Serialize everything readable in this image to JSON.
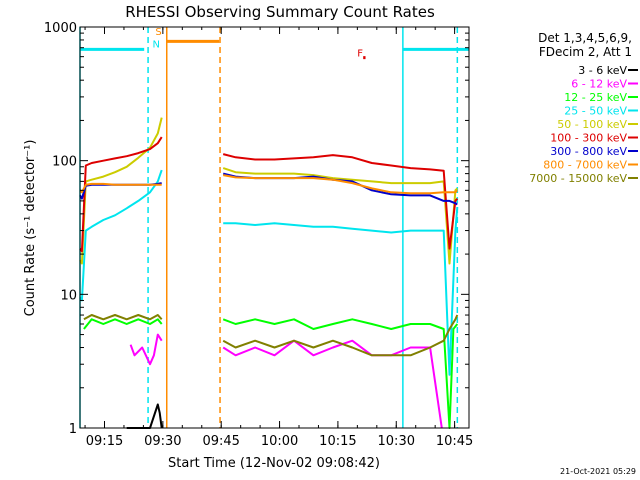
{
  "chart_data": {
    "type": "line",
    "title": "RHESSI Observing Summary Count Rates",
    "xlabel": "Start Time (12-Nov-02 09:08:42)",
    "ylabel": "Count Rate (s⁻¹ detector⁻¹)",
    "y_scale": "log",
    "ylim": [
      1,
      1000
    ],
    "xlim_minutes": [
      0,
      100
    ],
    "x_ticks": [
      {
        "label": "09:15",
        "t": 6.3
      },
      {
        "label": "09:30",
        "t": 21.3
      },
      {
        "label": "09:45",
        "t": 36.3
      },
      {
        "label": "10:00",
        "t": 51.3
      },
      {
        "label": "10:15",
        "t": 66.3
      },
      {
        "label": "10:30",
        "t": 81.3
      },
      {
        "label": "10:45",
        "t": 96.3
      }
    ],
    "y_ticks": [
      {
        "label": "1",
        "v": 1
      },
      {
        "label": "10",
        "v": 10
      },
      {
        "label": "100",
        "v": 100
      },
      {
        "label": "1000",
        "v": 1000
      }
    ],
    "info_lines": [
      "Det 1,3,4,5,6,9,",
      "FDecim 2, Att 1"
    ],
    "timestamp": "21-Oct-2021 05:29",
    "flags": [
      {
        "text": "S",
        "t": 20.2,
        "v": 870,
        "color": "#ff8c00"
      },
      {
        "text": "N",
        "t": 19.6,
        "v": 700,
        "color": "#00e5ee"
      },
      {
        "text": "F",
        "t": 72.0,
        "v": 600,
        "color": "#dd0000"
      }
    ],
    "vlines": [
      {
        "t": 0.0,
        "color": "#00e5ee",
        "dash": false
      },
      {
        "t": 17.5,
        "color": "#00e5ee",
        "dash": true
      },
      {
        "t": 22.3,
        "color": "#ff8c00",
        "dash": false
      },
      {
        "t": 36.0,
        "color": "#ff8c00",
        "dash": true
      },
      {
        "t": 83.0,
        "color": "#00e5ee",
        "dash": false
      },
      {
        "t": 97.0,
        "color": "#00e5ee",
        "dash": true
      }
    ],
    "bars": [
      {
        "t0": 0,
        "t1": 16.5,
        "v": 680,
        "color": "#00e5ee"
      },
      {
        "t0": 22.3,
        "t1": 35.8,
        "v": 780,
        "color": "#ff8c00"
      },
      {
        "t0": 83,
        "t1": 100,
        "v": 680,
        "color": "#00e5ee"
      },
      {
        "t0": 72.8,
        "t1": 73.4,
        "v": 590,
        "color": "#dd0000"
      }
    ],
    "series": [
      {
        "name": "3 - 6 keV",
        "color": "#000000",
        "x": [
          1,
          12,
          14,
          16,
          18,
          20,
          20.5,
          21
        ],
        "y": [
          1,
          1,
          1,
          1,
          1,
          1.5,
          1.3,
          1
        ]
      },
      {
        "name": "6 - 12 keV",
        "color": "#ff00ff",
        "x": [
          13,
          14,
          16,
          18,
          19,
          20,
          21,
          36.8,
          40,
          45,
          50,
          55,
          60,
          65,
          70,
          75,
          80,
          85,
          90,
          93
        ],
        "y": [
          4.2,
          3.5,
          4.0,
          3.0,
          3.5,
          5.0,
          4.5,
          4.0,
          3.5,
          4.0,
          3.5,
          4.5,
          3.5,
          4.0,
          4.5,
          3.5,
          3.5,
          4.0,
          4.0,
          1
        ]
      },
      {
        "name": "12 - 25 keV",
        "color": "#00ff00",
        "x": [
          1,
          3,
          6,
          9,
          12,
          15,
          18,
          20,
          21,
          36.8,
          40,
          45,
          50,
          55,
          60,
          65,
          70,
          75,
          80,
          85,
          90,
          93.5,
          95,
          96,
          97
        ],
        "y": [
          5.5,
          6.5,
          6.0,
          6.5,
          6.0,
          6.5,
          6.0,
          6.5,
          6.0,
          6.5,
          6.0,
          6.5,
          6.0,
          6.5,
          5.5,
          6.0,
          6.5,
          6.0,
          5.5,
          6.0,
          6.0,
          5.5,
          1,
          5.5,
          6.0
        ]
      },
      {
        "name": "25 - 50 keV",
        "color": "#00e5ee",
        "x": [
          0,
          0.5,
          1.5,
          3,
          6,
          9,
          12,
          15,
          18,
          20,
          21,
          36.8,
          40,
          45,
          50,
          55,
          60,
          65,
          70,
          75,
          80,
          85,
          90,
          93.5,
          95,
          96.5,
          97
        ],
        "y": [
          9.5,
          9,
          30,
          32,
          36,
          39,
          44,
          50,
          58,
          70,
          85,
          34,
          34,
          33,
          34,
          33,
          32,
          32,
          31,
          30,
          29,
          30,
          30,
          30,
          2.5,
          30,
          45
        ]
      },
      {
        "name": "50 - 100 keV",
        "color": "#cccc00",
        "x": [
          0,
          0.5,
          1.5,
          3,
          6,
          9,
          12,
          15,
          18,
          20,
          21,
          36.8,
          40,
          45,
          50,
          55,
          60,
          65,
          70,
          75,
          80,
          85,
          90,
          93.5,
          95,
          96.5,
          97
        ],
        "y": [
          18,
          17,
          70,
          72,
          76,
          82,
          90,
          105,
          125,
          160,
          210,
          88,
          82,
          80,
          80,
          80,
          78,
          74,
          72,
          70,
          68,
          68,
          68,
          70,
          17,
          60,
          62
        ]
      },
      {
        "name": "100 - 300 keV",
        "color": "#dd0000",
        "x": [
          0,
          0.5,
          1.5,
          3,
          6,
          9,
          12,
          15,
          18,
          20,
          21,
          36.8,
          40,
          45,
          50,
          55,
          60,
          65,
          70,
          75,
          80,
          85,
          90,
          93.5,
          95,
          96.5,
          97
        ],
        "y": [
          22,
          21,
          92,
          96,
          100,
          104,
          108,
          114,
          122,
          135,
          150,
          112,
          106,
          102,
          102,
          104,
          106,
          110,
          106,
          96,
          92,
          88,
          86,
          84,
          22,
          50,
          52
        ]
      },
      {
        "name": "300 - 800 keV",
        "color": "#0000cc",
        "x": [
          0,
          0.5,
          1.5,
          3,
          6,
          9,
          12,
          15,
          18,
          20,
          21,
          36.8,
          40,
          45,
          50,
          55,
          60,
          65,
          70,
          75,
          80,
          85,
          90,
          93.5,
          95,
          96.5,
          97
        ],
        "y": [
          55,
          52,
          65,
          66,
          66,
          66,
          66,
          66,
          66,
          67,
          68,
          80,
          76,
          74,
          74,
          74,
          76,
          72,
          70,
          60,
          56,
          55,
          55,
          50,
          50,
          48,
          47
        ]
      },
      {
        "name": "800 - 7000 keV",
        "color": "#ff8c00",
        "x": [
          0,
          0.5,
          1.5,
          3,
          6,
          9,
          12,
          15,
          18,
          20,
          21,
          36.8,
          40,
          45,
          50,
          55,
          60,
          65,
          70,
          75,
          80,
          85,
          90,
          93.5,
          95,
          96.5,
          97
        ],
        "y": [
          60,
          58,
          66,
          67,
          67,
          66,
          66,
          66,
          66,
          66,
          66,
          78,
          75,
          74,
          74,
          74,
          74,
          72,
          68,
          62,
          58,
          57,
          57,
          58,
          58,
          58,
          60
        ]
      },
      {
        "name": "7000 - 15000 keV",
        "color": "#808000",
        "x": [
          1,
          3,
          6,
          9,
          12,
          15,
          18,
          20,
          21,
          36.8,
          40,
          45,
          50,
          55,
          60,
          65,
          70,
          75,
          80,
          85,
          90,
          93.5,
          95,
          96.5,
          97
        ],
        "y": [
          6.5,
          7.0,
          6.5,
          7.0,
          6.5,
          7.0,
          6.5,
          7.0,
          6.5,
          4.5,
          4.0,
          4.5,
          4.0,
          4.5,
          4.0,
          4.5,
          4.0,
          3.5,
          3.5,
          3.5,
          4.0,
          4.5,
          5.5,
          6.5,
          7.0
        ]
      }
    ]
  }
}
